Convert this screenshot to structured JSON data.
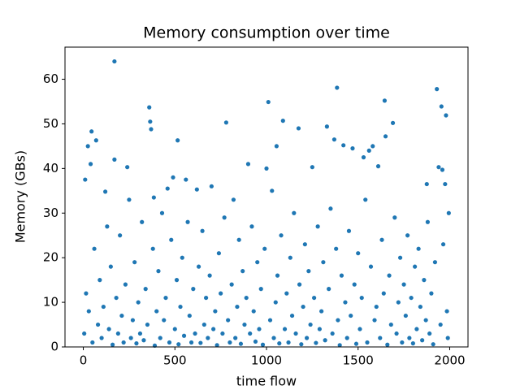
{
  "chart_data": {
    "type": "scatter",
    "title": "Memory consumption over time",
    "x_label": "time flow",
    "y_label": "Memory (GBs)",
    "color": "#1f77b4",
    "xlim": [
      -100,
      2100
    ],
    "ylim": [
      0,
      67.2
    ],
    "xticks": [
      0,
      500,
      1000,
      1500,
      2000
    ],
    "yticks": [
      0,
      10,
      20,
      30,
      40,
      50,
      60
    ],
    "grid": false,
    "x": [
      170,
      360,
      365,
      370,
      10,
      25,
      45,
      70,
      40,
      170,
      515,
      780,
      1010,
      1090,
      1175,
      1330,
      1385,
      1645,
      1690,
      1930,
      1955,
      1980,
      1055,
      1370,
      1420,
      1470,
      1530,
      1580,
      1610,
      1650,
      1940,
      1960,
      1975,
      1875,
      900,
      1000,
      1250,
      1560,
      700,
      490,
      560,
      240,
      120,
      385,
      460,
      620,
      5,
      15,
      30,
      50,
      60,
      80,
      90,
      100,
      110,
      130,
      140,
      150,
      160,
      180,
      190,
      200,
      210,
      220,
      230,
      250,
      260,
      270,
      280,
      290,
      300,
      310,
      320,
      330,
      340,
      350,
      380,
      390,
      400,
      410,
      420,
      430,
      440,
      450,
      470,
      480,
      500,
      510,
      520,
      530,
      540,
      550,
      570,
      580,
      590,
      600,
      610,
      630,
      640,
      650,
      660,
      670,
      680,
      690,
      710,
      720,
      730,
      740,
      750,
      760,
      770,
      790,
      800,
      810,
      820,
      830,
      840,
      850,
      860,
      870,
      880,
      890,
      910,
      920,
      930,
      940,
      950,
      960,
      970,
      980,
      990,
      1020,
      1030,
      1040,
      1050,
      1060,
      1070,
      1080,
      1100,
      1110,
      1120,
      1130,
      1140,
      1150,
      1160,
      1180,
      1190,
      1200,
      1210,
      1220,
      1230,
      1240,
      1260,
      1270,
      1280,
      1290,
      1300,
      1310,
      1320,
      1340,
      1350,
      1360,
      1380,
      1390,
      1400,
      1410,
      1430,
      1440,
      1450,
      1460,
      1480,
      1490,
      1500,
      1510,
      1520,
      1540,
      1550,
      1570,
      1590,
      1600,
      1620,
      1630,
      1640,
      1660,
      1670,
      1680,
      1700,
      1710,
      1720,
      1730,
      1740,
      1750,
      1760,
      1770,
      1780,
      1790,
      1800,
      1810,
      1820,
      1830,
      1840,
      1850,
      1860,
      1870,
      1880,
      1890,
      1900,
      1910,
      1920,
      1950,
      1965,
      1985,
      1995,
      1990
    ],
    "values": [
      64,
      53.7,
      50.5,
      48.8,
      37.5,
      45,
      48.3,
      46.3,
      41,
      42,
      46.3,
      50.3,
      54.9,
      50.7,
      49,
      49.4,
      58.1,
      55.2,
      50.2,
      57.8,
      53.9,
      51.9,
      45,
      46.5,
      45.2,
      44.5,
      42.5,
      45,
      40.5,
      47.2,
      40.3,
      39.7,
      36.5,
      36.5,
      41,
      40,
      40.3,
      44,
      36,
      38,
      37.5,
      40.3,
      34.8,
      33.5,
      35.5,
      35.3,
      3,
      12,
      8,
      1,
      22,
      5,
      15,
      2,
      9,
      27,
      4,
      18,
      0.5,
      11,
      3,
      25,
      7,
      1,
      14,
      33,
      2,
      6,
      19,
      0.8,
      10,
      3,
      28,
      1.5,
      13,
      5,
      22,
      0.3,
      8,
      17,
      2,
      30,
      6,
      11,
      1,
      24,
      4,
      15,
      0.6,
      9,
      20,
      2.5,
      28,
      7,
      1,
      13,
      3,
      18,
      0.9,
      26,
      5,
      11,
      2,
      16,
      4,
      8,
      0.4,
      21,
      12,
      3,
      29,
      6,
      1,
      14,
      33,
      2,
      9,
      24,
      0.7,
      17,
      5,
      11,
      3,
      27,
      8,
      1.2,
      19,
      4,
      13,
      0.5,
      22,
      6,
      35,
      2,
      10,
      16,
      0.8,
      25,
      4,
      12,
      1,
      20,
      7,
      30,
      3,
      14,
      0.6,
      9,
      23,
      2,
      17,
      5,
      11,
      0.9,
      27,
      4,
      8,
      19,
      1.5,
      13,
      31,
      3,
      22,
      6,
      0.4,
      16,
      10,
      2,
      26,
      7,
      14,
      0.7,
      21,
      4,
      11,
      33,
      1,
      18,
      6,
      9,
      2,
      24,
      12,
      0.5,
      16,
      5,
      29,
      3,
      10,
      20,
      1,
      14,
      7,
      25,
      2,
      11,
      0.8,
      18,
      4,
      22,
      9,
      1.5,
      15,
      6,
      28,
      3,
      12,
      0.6,
      19,
      5,
      23,
      8,
      30,
      2
    ]
  }
}
